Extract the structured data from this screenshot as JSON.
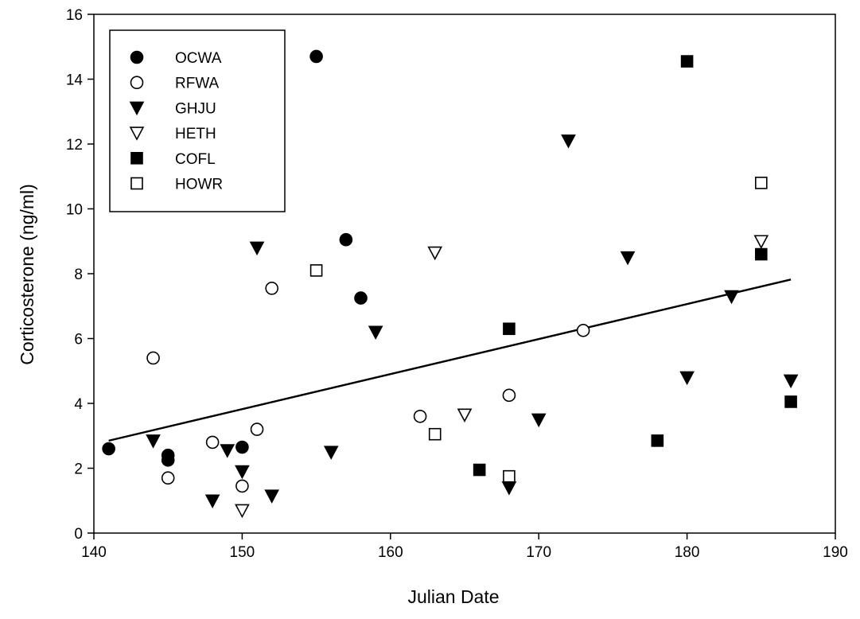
{
  "chart_data": {
    "type": "scatter",
    "xlabel": "Julian Date",
    "ylabel": "Corticosterone (ng/ml)",
    "xlim": [
      140,
      190
    ],
    "ylim": [
      0,
      16
    ],
    "xticks": [
      140,
      150,
      160,
      170,
      180,
      190
    ],
    "yticks": [
      0,
      2,
      4,
      6,
      8,
      10,
      12,
      14,
      16
    ],
    "xtick_labels": [
      "140",
      "150",
      "160",
      "170",
      "180",
      "190"
    ],
    "ytick_labels": [
      "0",
      "2",
      "4",
      "6",
      "8",
      "10",
      "12",
      "14",
      "16"
    ],
    "grid": false,
    "legend_position": "top-left",
    "series": [
      {
        "name": "OCWA",
        "marker": "filled-circle",
        "x": [
          141,
          145,
          145,
          150,
          155,
          157,
          158
        ],
        "y": [
          2.6,
          2.4,
          2.25,
          2.65,
          14.7,
          9.05,
          7.25
        ]
      },
      {
        "name": "RFWA",
        "marker": "open-circle",
        "x": [
          144,
          145,
          148,
          150,
          151,
          152,
          162,
          168,
          173
        ],
        "y": [
          5.4,
          1.7,
          2.8,
          1.45,
          3.2,
          7.55,
          3.6,
          4.25,
          6.25
        ]
      },
      {
        "name": "GHJU",
        "marker": "filled-triangle-down",
        "x": [
          144,
          148,
          149,
          150,
          151,
          152,
          156,
          159,
          168,
          170,
          172,
          176,
          180,
          183,
          187
        ],
        "y": [
          2.85,
          1.0,
          2.55,
          1.9,
          8.8,
          1.15,
          2.5,
          6.2,
          1.4,
          3.5,
          12.1,
          8.5,
          4.8,
          7.3,
          4.7
        ]
      },
      {
        "name": "HETH",
        "marker": "open-triangle-down",
        "x": [
          150,
          163,
          165,
          185
        ],
        "y": [
          0.7,
          8.65,
          3.65,
          9.0
        ]
      },
      {
        "name": "COFL",
        "marker": "filled-square",
        "x": [
          166,
          168,
          178,
          180,
          185,
          187
        ],
        "y": [
          1.95,
          6.3,
          2.85,
          14.55,
          8.6,
          4.05
        ]
      },
      {
        "name": "HOWR",
        "marker": "open-square",
        "x": [
          155,
          163,
          168,
          185
        ],
        "y": [
          8.1,
          3.05,
          1.75,
          10.8
        ]
      }
    ],
    "regression_line": {
      "x": [
        141,
        187
      ],
      "y": [
        2.85,
        7.82
      ]
    }
  }
}
